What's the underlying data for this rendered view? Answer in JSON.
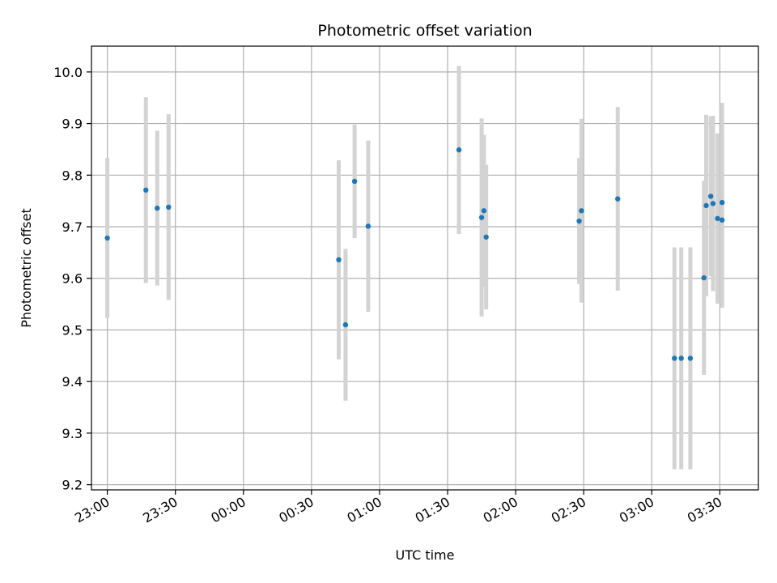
{
  "chart_data": {
    "type": "scatter",
    "title": "Photometric offset variation",
    "xlabel": "UTC time",
    "ylabel": "Photometric offset",
    "x_ticks": [
      "23:00",
      "23:30",
      "00:00",
      "00:30",
      "01:00",
      "01:30",
      "02:00",
      "02:30",
      "03:00",
      "03:30"
    ],
    "y_ticks": [
      "9.2",
      "9.3",
      "9.4",
      "9.5",
      "9.6",
      "9.7",
      "9.8",
      "9.9",
      "10.0"
    ],
    "xlim": [
      "22:53",
      "03:47"
    ],
    "ylim": [
      9.19,
      10.05
    ],
    "grid": true,
    "colors": {
      "point": "#1f77b4",
      "errorbar": "#d3d3d3",
      "grid": "#b0b0b0"
    },
    "points": [
      {
        "time": "23:00",
        "y": 9.678,
        "err": 0.155
      },
      {
        "time": "23:17",
        "y": 9.771,
        "err": 0.18
      },
      {
        "time": "23:22",
        "y": 9.736,
        "err": 0.15
      },
      {
        "time": "23:27",
        "y": 9.738,
        "err": 0.18
      },
      {
        "time": "00:42",
        "y": 9.636,
        "err": 0.193
      },
      {
        "time": "00:45",
        "y": 9.51,
        "err": 0.147
      },
      {
        "time": "00:49",
        "y": 9.788,
        "err": 0.11
      },
      {
        "time": "00:55",
        "y": 9.701,
        "err": 0.166
      },
      {
        "time": "01:35",
        "y": 9.849,
        "err": 0.163
      },
      {
        "time": "01:45",
        "y": 9.718,
        "err": 0.192
      },
      {
        "time": "01:46",
        "y": 9.731,
        "err": 0.147
      },
      {
        "time": "01:47",
        "y": 9.68,
        "err": 0.14
      },
      {
        "time": "02:28",
        "y": 9.711,
        "err": 0.122
      },
      {
        "time": "02:29",
        "y": 9.731,
        "err": 0.178
      },
      {
        "time": "02:45",
        "y": 9.754,
        "err": 0.178
      },
      {
        "time": "03:10",
        "y": 9.445,
        "err": 0.215
      },
      {
        "time": "03:13",
        "y": 9.445,
        "err": 0.215
      },
      {
        "time": "03:17",
        "y": 9.445,
        "err": 0.215
      },
      {
        "time": "03:23",
        "y": 9.601,
        "err": 0.188
      },
      {
        "time": "03:24",
        "y": 9.741,
        "err": 0.176
      },
      {
        "time": "03:26",
        "y": 9.759,
        "err": 0.155
      },
      {
        "time": "03:27",
        "y": 9.745,
        "err": 0.17
      },
      {
        "time": "03:29",
        "y": 9.716,
        "err": 0.165
      },
      {
        "time": "03:31",
        "y": 9.747,
        "err": 0.193
      },
      {
        "time": "03:31",
        "y": 9.713,
        "err": 0.17
      }
    ]
  }
}
